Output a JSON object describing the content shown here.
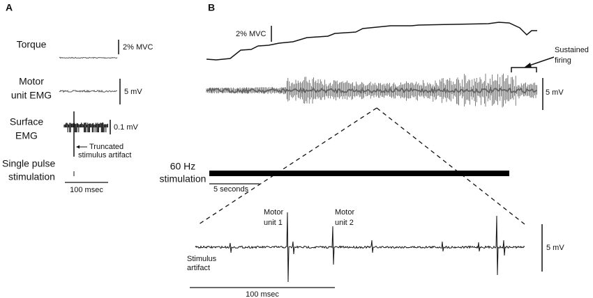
{
  "panel_a": {
    "letter": "A",
    "torque_label": "Torque",
    "torque_scale": "2% MVC",
    "motor_unit_emg_label": [
      "Motor",
      "unit EMG"
    ],
    "motor_unit_emg_scale": "5 mV",
    "surface_emg_label": [
      "Surface",
      "EMG"
    ],
    "surface_emg_scale": "0.1 mV",
    "artifact_note": [
      "Truncated",
      "stimulus artifact"
    ],
    "stimulation_label": [
      "Single pulse",
      "stimulation"
    ],
    "time_scale": "100 msec"
  },
  "panel_b": {
    "letter": "B",
    "torque_scale": "2% MVC",
    "sustained_note": [
      "Sustained",
      "firing"
    ],
    "emg_scale": "5 mV",
    "stimulation_label": [
      "60 Hz",
      "stimulation"
    ],
    "time_scale": "5 seconds",
    "inset": {
      "unit_1": [
        "Motor",
        "unit 1"
      ],
      "unit_2": [
        "Motor",
        "unit 2"
      ],
      "artifact_label": [
        "Stimulus",
        "artifact"
      ],
      "emg_scale": "5 mV",
      "time_scale": "100 msec"
    }
  }
}
